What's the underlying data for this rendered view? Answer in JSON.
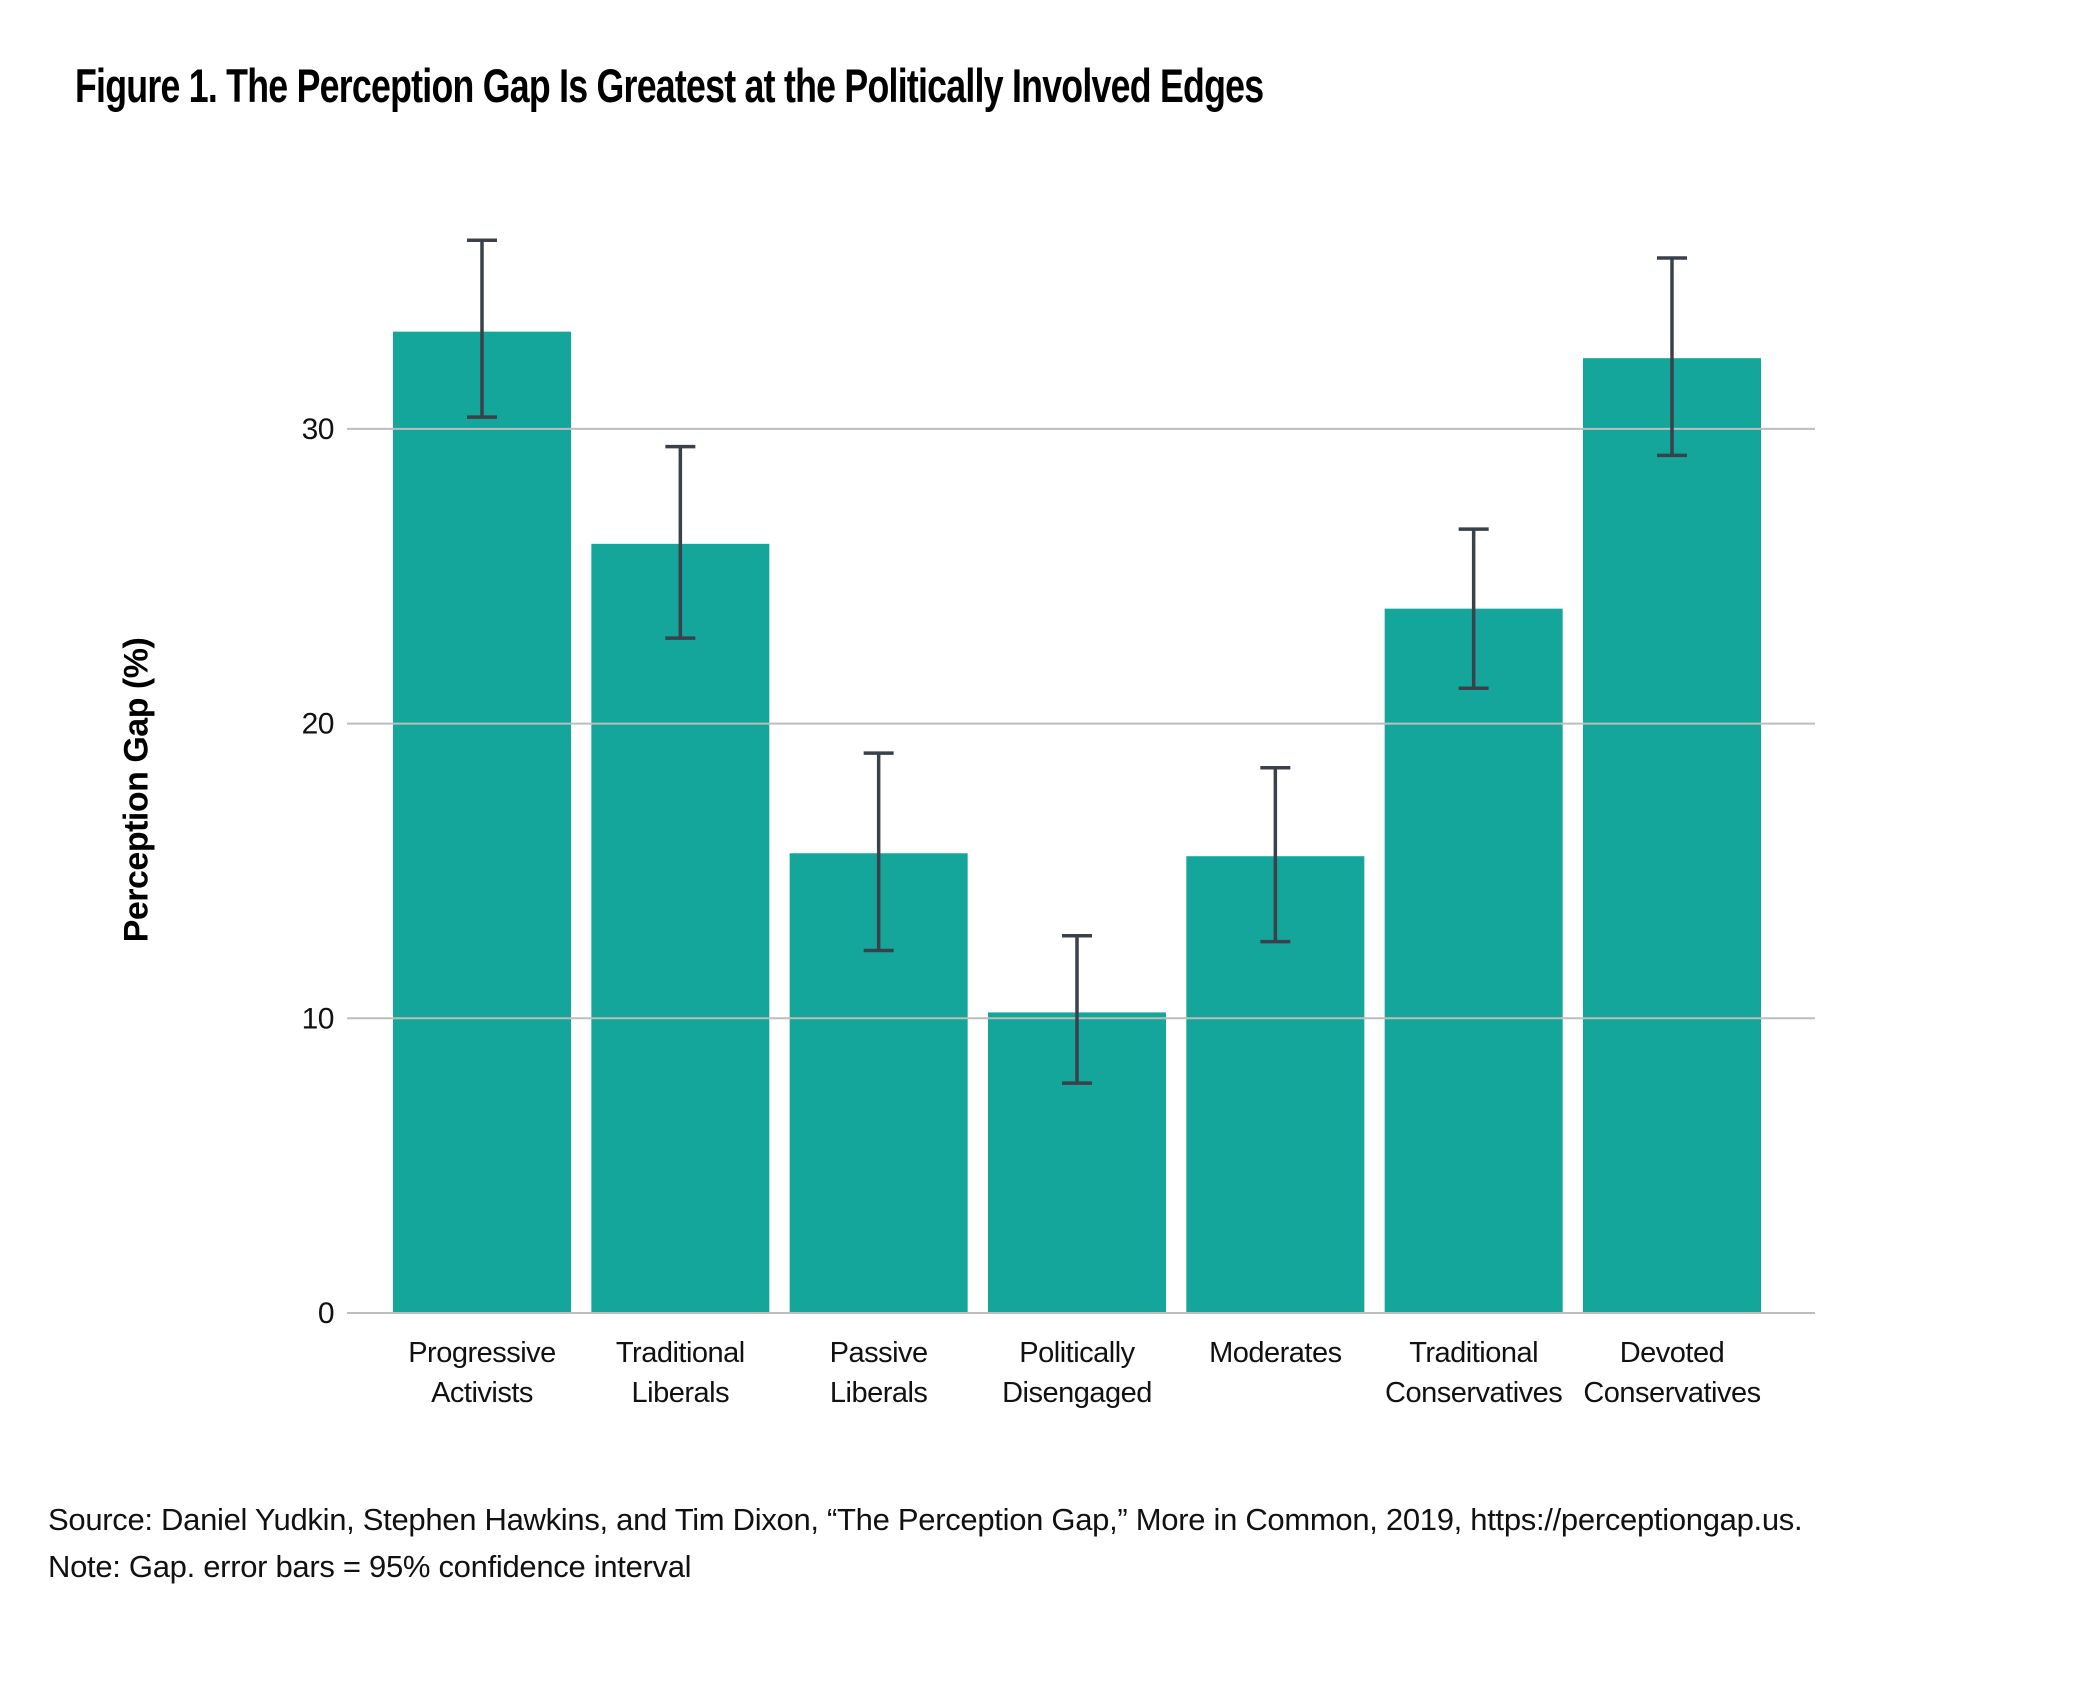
{
  "figure": {
    "title": "Figure 1. The Perception Gap Is Greatest at the Politically Involved Edges",
    "source_line": "Source: Daniel Yudkin, Stephen Hawkins, and Tim Dixon, “The Perception Gap,” More in Common, 2019, https://perceptiongap.us.",
    "note_line": "Note: Gap. error bars = 95% confidence interval"
  },
  "chart_data": {
    "type": "bar",
    "title": "Figure 1. The Perception Gap Is Greatest at the Politically Involved Edges",
    "xlabel": "",
    "ylabel": "Perception Gap (%)",
    "ylim": [
      0,
      38
    ],
    "yticks": [
      0,
      10,
      20,
      30
    ],
    "grid": true,
    "legend": false,
    "error_bars": "95% confidence interval",
    "categories": [
      "Progressive Activists",
      "Traditional Liberals",
      "Passive Liberals",
      "Politically Disengaged",
      "Moderates",
      "Traditional Conservatives",
      "Devoted Conservatives"
    ],
    "category_lines": [
      [
        "Progressive",
        "Activists"
      ],
      [
        "Traditional",
        "Liberals"
      ],
      [
        "Passive",
        "Liberals"
      ],
      [
        "Politically",
        "Disengaged"
      ],
      [
        "Moderates"
      ],
      [
        "Traditional",
        "Conservatives"
      ],
      [
        "Devoted",
        "Conservatives"
      ]
    ],
    "values": [
      33.3,
      26.1,
      15.6,
      10.2,
      15.5,
      23.9,
      32.4
    ],
    "ci_low": [
      30.4,
      22.9,
      12.3,
      7.8,
      12.6,
      21.2,
      29.1
    ],
    "ci_high": [
      36.4,
      29.4,
      19.0,
      12.8,
      18.5,
      26.6,
      35.8
    ],
    "colors": {
      "bar": "#15A69B",
      "error_bar": "#3A414B",
      "gridline": "#BDBDBD",
      "text": "#111111"
    }
  }
}
